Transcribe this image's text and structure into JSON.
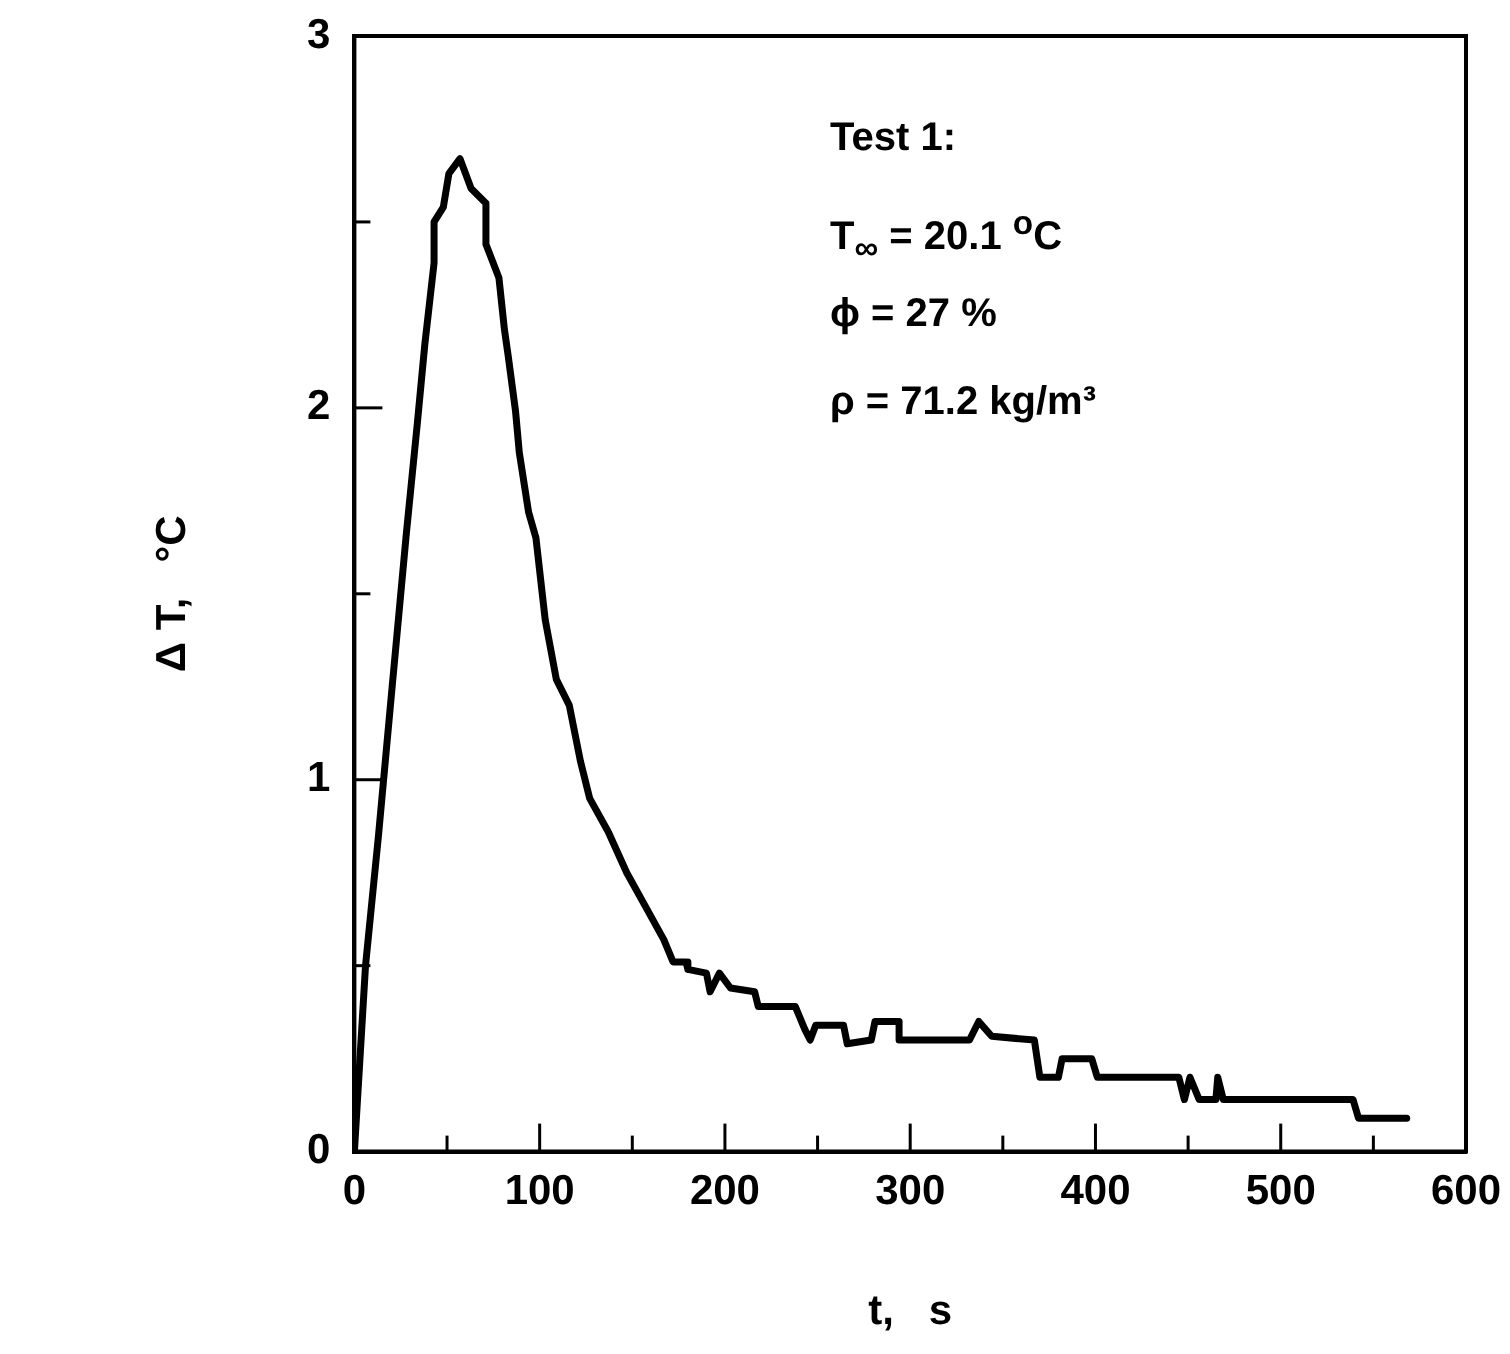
{
  "chart_data": {
    "type": "line",
    "xlabel": "t,   s",
    "ylabel": "Δ T,   °C",
    "annotations": [
      "Test 1:",
      "T$_{∞}$ = 20.1 $^{o}$C",
      "ϕ = 27 %",
      "ρ = 71.2  kg/m³"
    ],
    "xlim": [
      0,
      600
    ],
    "ylim": [
      0,
      3
    ],
    "xticks": [
      0,
      {
        "value": 50,
        "label": null
      },
      100,
      {
        "value": 150,
        "label": null
      },
      200,
      {
        "value": 250,
        "label": null
      },
      300,
      {
        "value": 350,
        "label": null
      },
      400,
      {
        "value": 450,
        "label": null
      },
      500,
      {
        "value": 550,
        "label": null
      },
      600
    ],
    "yticks": [
      0,
      {
        "value": 0.5,
        "label": null
      },
      1,
      {
        "value": 1.5,
        "label": null
      },
      2,
      {
        "value": 2.5,
        "label": null
      },
      3
    ],
    "grid": false,
    "legend": false,
    "marker": "none",
    "line_style": "solid",
    "series": [
      {
        "color": "#000000",
        "x": [
          0,
          6,
          13,
          20,
          28,
          34,
          38,
          43,
          43,
          48,
          51,
          57,
          63,
          71,
          71,
          78,
          81,
          83,
          87,
          89,
          94,
          98,
          103,
          109,
          116,
          122,
          127,
          137,
          147,
          157,
          167,
          172,
          179,
          180,
          190,
          192,
          197,
          203,
          216,
          218,
          238,
          243,
          246,
          249,
          264,
          266,
          279,
          281,
          294,
          294,
          332,
          337,
          344,
          367,
          370,
          380,
          382,
          398,
          401,
          445,
          448,
          451,
          456,
          465,
          466,
          469,
          539,
          542,
          568
        ],
        "values": [
          0,
          0.5,
          0.85,
          1.23,
          1.66,
          1.96,
          2.17,
          2.39,
          2.5,
          2.54,
          2.63,
          2.67,
          2.59,
          2.55,
          2.44,
          2.35,
          2.21,
          2.14,
          1.99,
          1.88,
          1.72,
          1.65,
          1.43,
          1.27,
          1.2,
          1.05,
          0.95,
          0.86,
          0.75,
          0.66,
          0.57,
          0.51,
          0.51,
          0.49,
          0.48,
          0.43,
          0.48,
          0.44,
          0.43,
          0.39,
          0.39,
          0.33,
          0.3,
          0.34,
          0.34,
          0.29,
          0.3,
          0.35,
          0.35,
          0.3,
          0.3,
          0.35,
          0.31,
          0.3,
          0.2,
          0.2,
          0.25,
          0.25,
          0.2,
          0.2,
          0.14,
          0.2,
          0.14,
          0.14,
          0.2,
          0.14,
          0.14,
          0.09,
          0.09
        ]
      }
    ]
  }
}
